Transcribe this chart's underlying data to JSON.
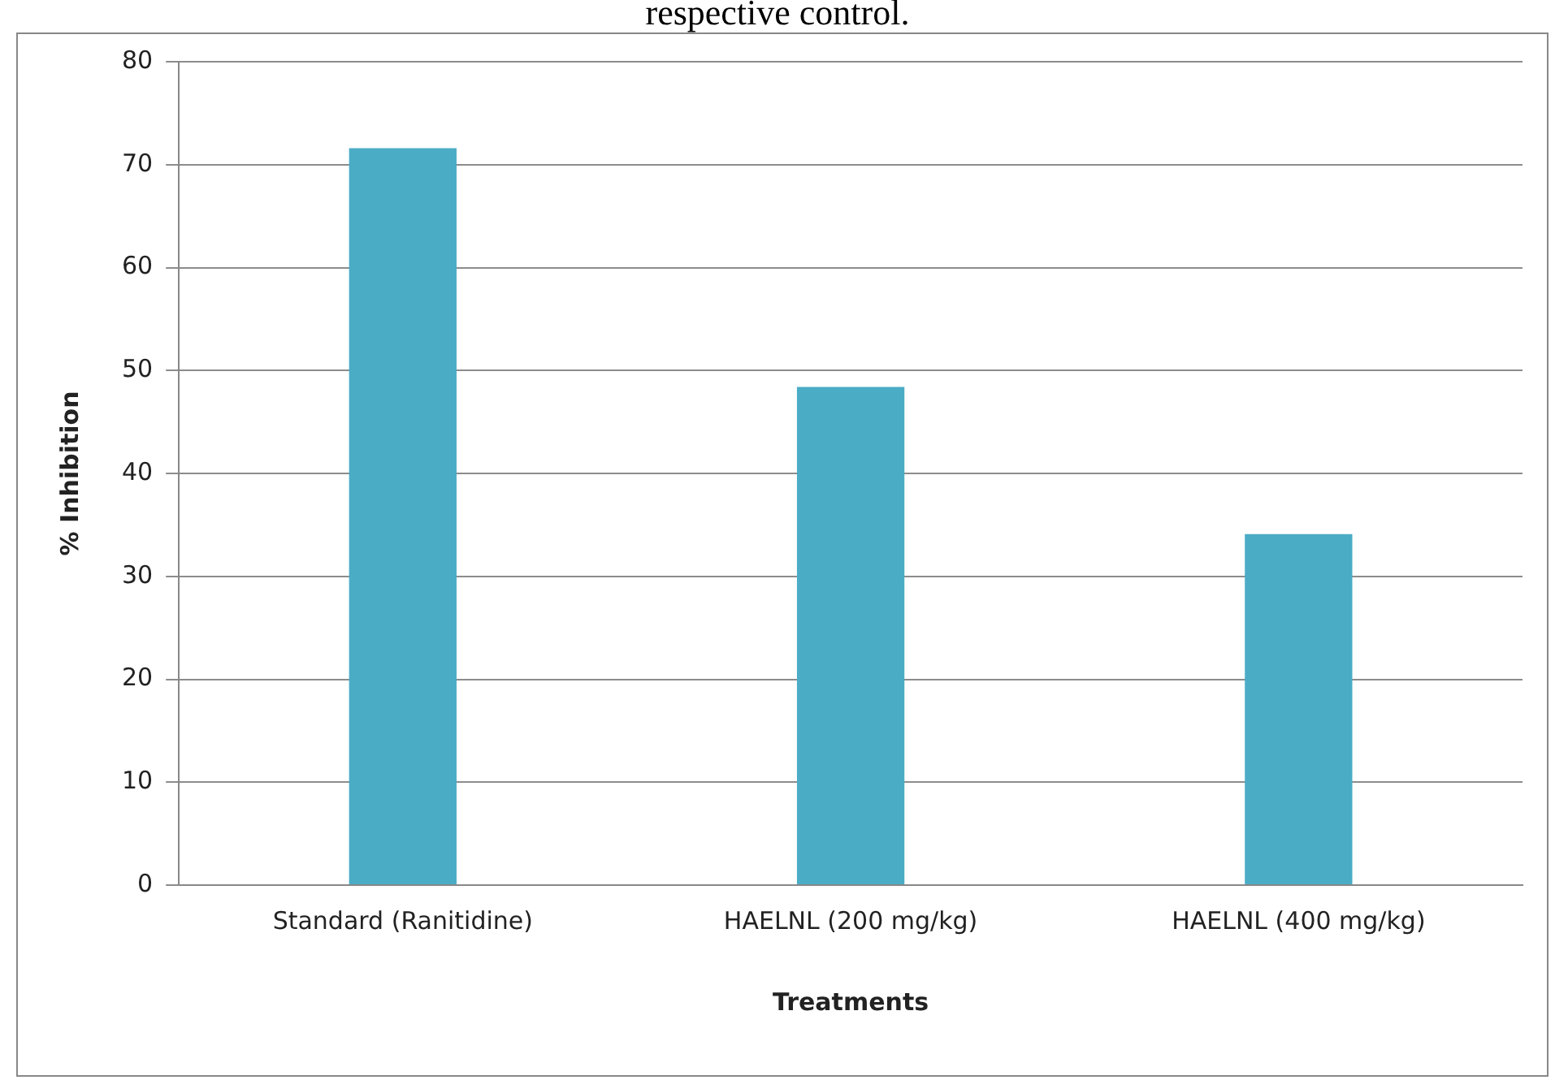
{
  "chart_data": {
    "type": "bar",
    "title": "respective control.",
    "xlabel": "Treatments",
    "ylabel": "% Inhibition",
    "categories": [
      "Standard (Ranitidine)",
      "HAELNL (200 mg/kg)",
      "HAELNL (400 mg/kg)"
    ],
    "values": [
      71.6,
      48.4,
      34.1
    ],
    "color": "#4bacc6",
    "ylim": [
      0,
      80
    ],
    "yticks": [
      0,
      10,
      20,
      30,
      40,
      50,
      60,
      70,
      80
    ],
    "grid": "y",
    "legend": false
  }
}
